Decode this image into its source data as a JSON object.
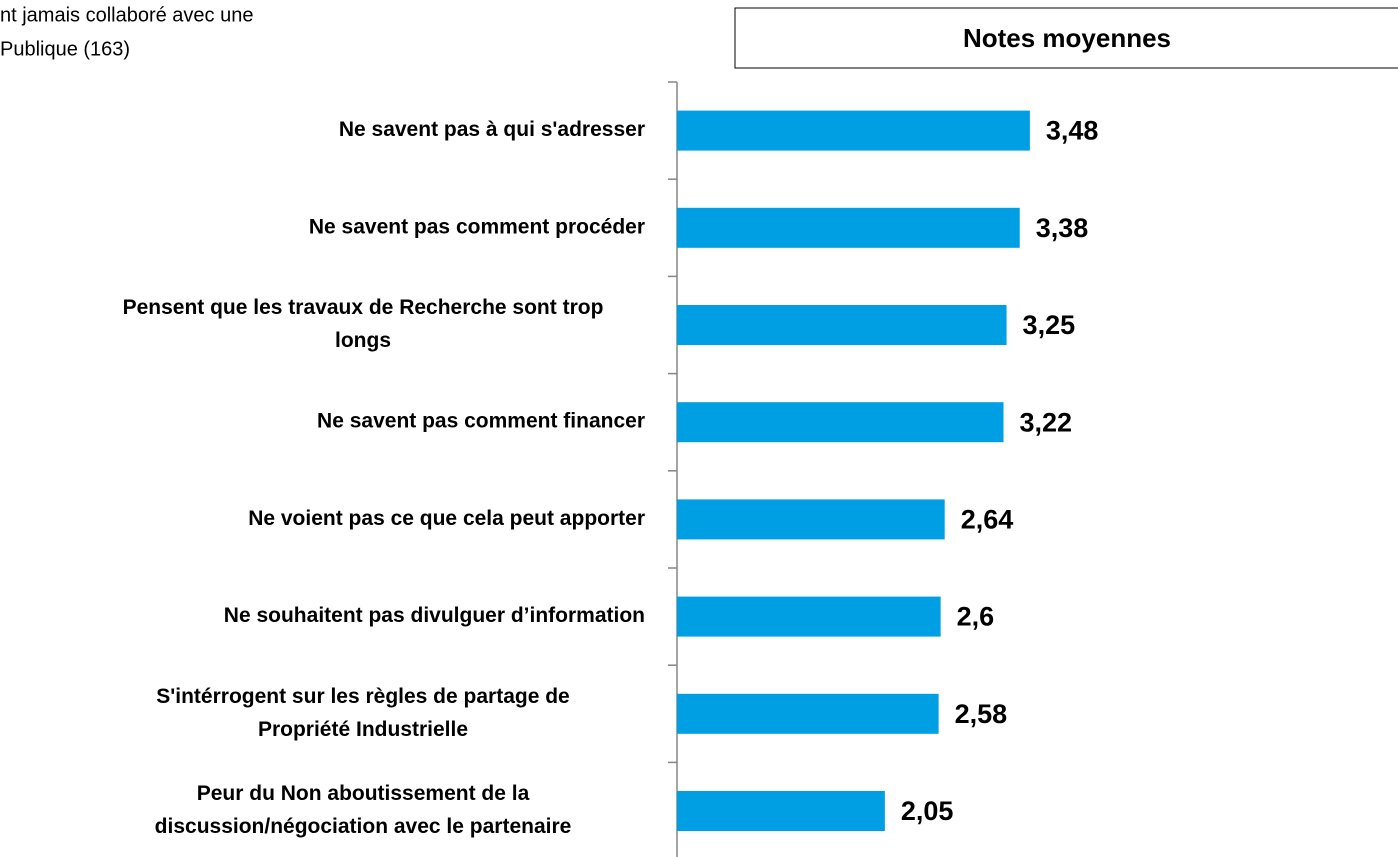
{
  "chart_data": {
    "type": "bar",
    "orientation": "horizontal",
    "subtitle": [
      "nt jamais collaboré avec une",
      "Publique (163)"
    ],
    "title": "Notes moyennes",
    "categories": [
      [
        "Ne savent pas à qui s'adresser"
      ],
      [
        "Ne savent pas comment procéder"
      ],
      [
        "Pensent que les travaux de Recherche sont trop",
        "longs"
      ],
      [
        "Ne savent pas comment financer"
      ],
      [
        "Ne voient pas ce que cela peut apporter"
      ],
      [
        "Ne souhaitent pas divulguer d’information"
      ],
      [
        "S'intérrogent sur les règles de partage de",
        "Propriété Industrielle"
      ],
      [
        "Peur du Non aboutissement de la",
        "discussion/négociation avec le partenaire"
      ]
    ],
    "values": [
      3.48,
      3.38,
      3.25,
      3.22,
      2.64,
      2.6,
      2.58,
      2.05
    ],
    "value_labels": [
      "3,48",
      "3,38",
      "3,25",
      "3,22",
      "2,64",
      "2,6",
      "2,58",
      "2,05"
    ],
    "color": "#009fe3",
    "xlim": [
      0,
      7
    ]
  }
}
